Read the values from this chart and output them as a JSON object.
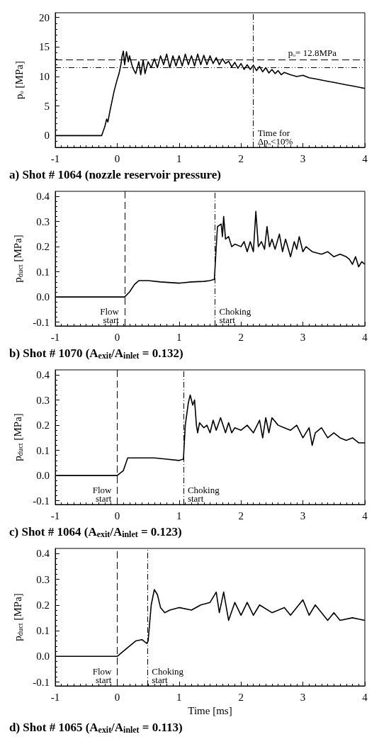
{
  "chart_data": [
    {
      "type": "line",
      "title": "a) Shot # 1064 (nozzle reservoir pressure)",
      "ylabel": "pₒ [MPa]",
      "xlim": [
        -1,
        4
      ],
      "xticks": [
        -1,
        0,
        1,
        2,
        3,
        4
      ],
      "ylim": [
        -2,
        20.8
      ],
      "yticks": [
        0,
        5,
        10,
        15,
        20
      ],
      "grid": false,
      "marker": "none",
      "line_style": "solid",
      "series": [
        {
          "color": "#000000",
          "x": [
            -1,
            -0.6,
            -0.25,
            -0.2,
            -0.17,
            -0.15,
            -0.12,
            -0.1,
            -0.05,
            0,
            0.03,
            0.06,
            0.08,
            0.1,
            0.12,
            0.15,
            0.18,
            0.2,
            0.25,
            0.3,
            0.35,
            0.38,
            0.42,
            0.45,
            0.5,
            0.55,
            0.6,
            0.65,
            0.7,
            0.75,
            0.8,
            0.85,
            0.9,
            0.95,
            1.0,
            1.05,
            1.1,
            1.15,
            1.2,
            1.25,
            1.3,
            1.35,
            1.4,
            1.45,
            1.5,
            1.55,
            1.6,
            1.65,
            1.7,
            1.75,
            1.8,
            1.85,
            1.9,
            1.95,
            2.0,
            2.05,
            2.1,
            2.15,
            2.2,
            2.25,
            2.3,
            2.35,
            2.4,
            2.45,
            2.5,
            2.55,
            2.6,
            2.65,
            2.7,
            2.8,
            2.9,
            3.0,
            3.1,
            3.2,
            3.3,
            3.4,
            3.5,
            3.6,
            3.7,
            3.8,
            3.9,
            4.0
          ],
          "values": [
            0,
            0,
            0,
            1.5,
            2.8,
            2.3,
            4,
            5,
            7.5,
            9.5,
            10.5,
            12,
            13.5,
            14.3,
            12,
            14.2,
            12.5,
            13.5,
            11.5,
            10.5,
            12.5,
            10.3,
            12.8,
            10.5,
            12.5,
            11.5,
            13,
            11.5,
            13.5,
            12,
            13.8,
            11.5,
            13.5,
            11.8,
            13.5,
            11.8,
            13.8,
            12,
            13.5,
            11.8,
            13.8,
            12,
            13.6,
            12,
            13.5,
            12.2,
            13.2,
            12,
            13,
            12.2,
            12.6,
            11.6,
            12.4,
            11.4,
            12.2,
            11.2,
            12,
            11.2,
            11.9,
            11,
            11.7,
            10.8,
            11.5,
            10.6,
            11.2,
            10.5,
            11,
            10.3,
            10.7,
            10.3,
            10,
            10.2,
            9.8,
            9.6,
            9.4,
            9.2,
            9,
            8.8,
            8.6,
            8.4,
            8.2,
            8
          ]
        }
      ],
      "ref_lines": [
        {
          "axis": "y",
          "value": 12.8,
          "label": "pₒ= 12.8MPa",
          "line_style": "dashed"
        },
        {
          "axis": "y",
          "value": 11.5,
          "line_style": "dashdotdot"
        },
        {
          "axis": "x",
          "value": 2.2,
          "label": "Time for Δpₒ<10%",
          "line_style": "dashdot"
        }
      ]
    },
    {
      "type": "line",
      "title": "b) Shot # 1070 (A$_{exit}$/A$_{inlet}$ = 0.132)",
      "ylabel": "p$_{duct}$ [MPa]",
      "xlim": [
        -1,
        4
      ],
      "xticks": [
        -1,
        0,
        1,
        2,
        3,
        4
      ],
      "ylim": [
        -0.115,
        0.42
      ],
      "yticks": [
        {
          "value": -0.1,
          "label": "-0.1"
        },
        {
          "value": 0,
          "label": "0.0"
        },
        {
          "value": 0.1,
          "label": "0.1"
        },
        {
          "value": 0.2,
          "label": "0.2"
        },
        {
          "value": 0.3,
          "label": "0.3"
        },
        {
          "value": 0.4,
          "label": "0.4"
        }
      ],
      "grid": false,
      "marker": "none",
      "line_style": "solid",
      "series": [
        {
          "color": "#000000",
          "x": [
            -1,
            -0.5,
            0,
            0.12,
            0.2,
            0.28,
            0.35,
            0.5,
            0.7,
            1.0,
            1.2,
            1.4,
            1.5,
            1.57,
            1.6,
            1.62,
            1.68,
            1.7,
            1.72,
            1.75,
            1.8,
            1.85,
            1.9,
            2.0,
            2.05,
            2.1,
            2.15,
            2.2,
            2.24,
            2.28,
            2.33,
            2.38,
            2.42,
            2.46,
            2.5,
            2.55,
            2.62,
            2.67,
            2.72,
            2.8,
            2.86,
            2.9,
            2.94,
            3.0,
            3.05,
            3.15,
            3.3,
            3.4,
            3.5,
            3.6,
            3.7,
            3.75,
            3.8,
            3.85,
            3.9,
            3.95,
            4.0
          ],
          "values": [
            0,
            0,
            0,
            0,
            0.02,
            0.05,
            0.065,
            0.065,
            0.06,
            0.055,
            0.06,
            0.062,
            0.065,
            0.07,
            0.2,
            0.28,
            0.29,
            0.24,
            0.32,
            0.23,
            0.24,
            0.2,
            0.21,
            0.2,
            0.22,
            0.18,
            0.22,
            0.18,
            0.34,
            0.2,
            0.22,
            0.19,
            0.28,
            0.2,
            0.23,
            0.19,
            0.25,
            0.18,
            0.23,
            0.16,
            0.22,
            0.19,
            0.24,
            0.18,
            0.2,
            0.18,
            0.17,
            0.18,
            0.16,
            0.17,
            0.16,
            0.15,
            0.13,
            0.16,
            0.12,
            0.14,
            0.13
          ]
        }
      ],
      "ref_lines": [
        {
          "axis": "x",
          "value": 0.12,
          "label": "Flow start",
          "line_style": "dashed"
        },
        {
          "axis": "x",
          "value": 1.58,
          "label": "Choking start",
          "line_style": "dashdot"
        }
      ]
    },
    {
      "type": "line",
      "title": "c) Shot # 1064 (A$_{exit}$/A$_{inlet}$ = 0.123)",
      "ylabel": "p$_{duct}$ [MPa]",
      "xlim": [
        -1,
        4
      ],
      "xticks": [
        -1,
        0,
        1,
        2,
        3,
        4
      ],
      "ylim": [
        -0.115,
        0.42
      ],
      "yticks": [
        {
          "value": -0.1,
          "label": "-0.1"
        },
        {
          "value": 0,
          "label": "0.0"
        },
        {
          "value": 0.1,
          "label": "0.1"
        },
        {
          "value": 0.2,
          "label": "0.2"
        },
        {
          "value": 0.3,
          "label": "0.3"
        },
        {
          "value": 0.4,
          "label": "0.4"
        }
      ],
      "grid": false,
      "marker": "none",
      "line_style": "solid",
      "series": [
        {
          "color": "#000000",
          "x": [
            -1,
            -0.5,
            0,
            0.1,
            0.17,
            0.2,
            0.4,
            0.6,
            0.8,
            1.0,
            1.07,
            1.1,
            1.15,
            1.18,
            1.22,
            1.25,
            1.28,
            1.3,
            1.33,
            1.4,
            1.45,
            1.5,
            1.55,
            1.6,
            1.67,
            1.75,
            1.8,
            1.85,
            1.9,
            2.0,
            2.1,
            2.2,
            2.3,
            2.35,
            2.4,
            2.45,
            2.5,
            2.6,
            2.7,
            2.8,
            2.9,
            3.0,
            3.1,
            3.15,
            3.2,
            3.3,
            3.4,
            3.5,
            3.6,
            3.7,
            3.8,
            3.9,
            4.0
          ],
          "values": [
            0,
            0,
            0,
            0.02,
            0.07,
            0.07,
            0.07,
            0.07,
            0.065,
            0.06,
            0.065,
            0.2,
            0.29,
            0.32,
            0.28,
            0.3,
            0.2,
            0.17,
            0.21,
            0.19,
            0.2,
            0.17,
            0.22,
            0.18,
            0.23,
            0.17,
            0.21,
            0.17,
            0.19,
            0.18,
            0.2,
            0.17,
            0.22,
            0.15,
            0.23,
            0.17,
            0.23,
            0.2,
            0.19,
            0.18,
            0.2,
            0.15,
            0.19,
            0.12,
            0.17,
            0.19,
            0.15,
            0.17,
            0.15,
            0.14,
            0.15,
            0.13,
            0.13
          ]
        }
      ],
      "ref_lines": [
        {
          "axis": "x",
          "value": 0,
          "label": "Flow start",
          "line_style": "dashed"
        },
        {
          "axis": "x",
          "value": 1.07,
          "label": "Choking start",
          "line_style": "dashdot"
        }
      ]
    },
    {
      "type": "line",
      "title": "d) Shot # 1065 (A$_{exit}$/A$_{inlet}$ = 0.113)",
      "xlabel": "Time [ms]",
      "ylabel": "p$_{duct}$ [MPa]",
      "xlim": [
        -1,
        4
      ],
      "xticks": [
        -1,
        0,
        1,
        2,
        3,
        4
      ],
      "ylim": [
        -0.115,
        0.42
      ],
      "yticks": [
        {
          "value": -0.1,
          "label": "-0.1"
        },
        {
          "value": 0,
          "label": "0.0"
        },
        {
          "value": 0.1,
          "label": "0.1"
        },
        {
          "value": 0.2,
          "label": "0.2"
        },
        {
          "value": 0.3,
          "label": "0.3"
        },
        {
          "value": 0.4,
          "label": "0.4"
        }
      ],
      "grid": false,
      "marker": "none",
      "line_style": "solid",
      "series": [
        {
          "color": "#000000",
          "x": [
            -1,
            -0.5,
            0,
            0.15,
            0.3,
            0.4,
            0.48,
            0.5,
            0.55,
            0.6,
            0.65,
            0.7,
            0.77,
            0.85,
            1.0,
            1.2,
            1.35,
            1.5,
            1.6,
            1.65,
            1.72,
            1.8,
            1.9,
            2.0,
            2.1,
            2.2,
            2.3,
            2.5,
            2.7,
            2.8,
            3.0,
            3.1,
            3.2,
            3.4,
            3.5,
            3.6,
            3.8,
            4.0
          ],
          "values": [
            0,
            0,
            0,
            0.03,
            0.06,
            0.065,
            0.05,
            0.06,
            0.2,
            0.26,
            0.24,
            0.19,
            0.17,
            0.18,
            0.19,
            0.18,
            0.2,
            0.21,
            0.25,
            0.17,
            0.25,
            0.14,
            0.21,
            0.16,
            0.21,
            0.16,
            0.2,
            0.17,
            0.19,
            0.16,
            0.22,
            0.16,
            0.2,
            0.14,
            0.17,
            0.14,
            0.15,
            0.14
          ]
        }
      ],
      "ref_lines": [
        {
          "axis": "x",
          "value": 0,
          "label": "Flow start",
          "line_style": "dashed"
        },
        {
          "axis": "x",
          "value": 0.49,
          "label": "Choking start",
          "line_style": "dashdot"
        }
      ]
    }
  ]
}
